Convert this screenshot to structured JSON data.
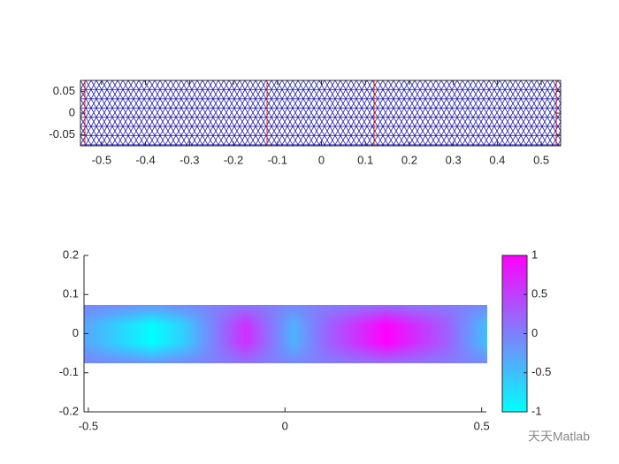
{
  "chart_data": [
    {
      "type": "mesh",
      "xlim": [
        -0.548,
        0.544
      ],
      "ylim": [
        -0.075,
        0.075
      ],
      "xticks": [
        -0.5,
        -0.4,
        -0.3,
        -0.2,
        -0.1,
        0,
        0.1,
        0.2,
        0.3,
        0.4,
        0.5
      ],
      "yticks": [
        -0.05,
        0,
        0.05
      ],
      "color": "#1a1aa8"
    },
    {
      "type": "surface",
      "xlim": [
        -0.511,
        0.512
      ],
      "ylim": [
        -0.2,
        0.2
      ],
      "xticks": [
        -0.5,
        0,
        0.5
      ],
      "yticks": [
        -0.2,
        -0.1,
        0,
        0.1,
        0.2
      ],
      "colorbar": {
        "clim": [
          -1,
          1
        ],
        "ticks": [
          -1,
          -0.5,
          0,
          0.5,
          1
        ],
        "colormap": [
          "#00ffff",
          "#ff00ff"
        ]
      }
    }
  ],
  "watermark": "天天Matlab"
}
